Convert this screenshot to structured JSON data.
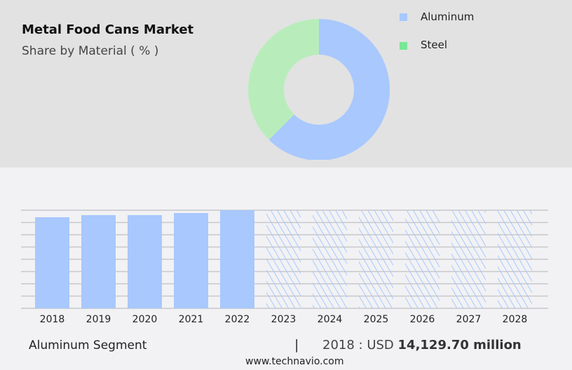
{
  "header": {
    "title": "Metal Food Cans Market",
    "subtitle": "Share by Material ( % )"
  },
  "chart_data": [
    {
      "type": "pie",
      "donut": true,
      "slices": [
        {
          "label": "Aluminum",
          "value": 62.5,
          "color": "#a8c8fe"
        },
        {
          "label": "Steel",
          "value": 37.5,
          "color": "#b8edbb"
        }
      ],
      "legend": [
        {
          "label": "Aluminum",
          "color": "#a8c8fe"
        },
        {
          "label": "Steel",
          "color": "#79e797"
        }
      ],
      "legend_placement": "top-right"
    },
    {
      "type": "bar",
      "categories": [
        "2018",
        "2019",
        "2020",
        "2021",
        "2022",
        "2023",
        "2024",
        "2025",
        "2026",
        "2027",
        "2028"
      ],
      "values": [
        14129.7,
        14456,
        14456,
        14782,
        15216,
        null,
        null,
        null,
        null,
        null,
        null
      ],
      "forecast": [
        false,
        false,
        false,
        false,
        false,
        true,
        true,
        true,
        true,
        true,
        true
      ],
      "color": "#a8c8fe",
      "grid": true,
      "ylim": [
        0,
        15216
      ],
      "unit": "USD million"
    }
  ],
  "footer": {
    "segment": "Aluminum Segment",
    "separator": "|",
    "year_label": "2018 : USD",
    "value": "14,129.70 million",
    "url": "www.technavio.com"
  }
}
